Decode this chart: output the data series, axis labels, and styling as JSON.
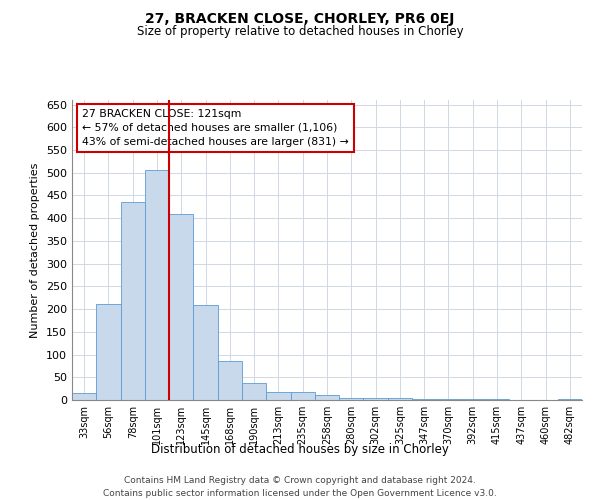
{
  "title": "27, BRACKEN CLOSE, CHORLEY, PR6 0EJ",
  "subtitle": "Size of property relative to detached houses in Chorley",
  "xlabel": "Distribution of detached houses by size in Chorley",
  "ylabel": "Number of detached properties",
  "bar_labels": [
    "33sqm",
    "56sqm",
    "78sqm",
    "101sqm",
    "123sqm",
    "145sqm",
    "168sqm",
    "190sqm",
    "213sqm",
    "235sqm",
    "258sqm",
    "280sqm",
    "302sqm",
    "325sqm",
    "347sqm",
    "370sqm",
    "392sqm",
    "415sqm",
    "437sqm",
    "460sqm",
    "482sqm"
  ],
  "bar_values": [
    15,
    212,
    435,
    505,
    410,
    208,
    85,
    38,
    18,
    18,
    10,
    5,
    5,
    5,
    3,
    3,
    3,
    3,
    0,
    0,
    3
  ],
  "bar_color": "#c9d9ec",
  "bar_edge_color": "#5b9bd5",
  "vline_color": "#cc0000",
  "vline_x_index": 3.5,
  "annotation_text": "27 BRACKEN CLOSE: 121sqm\n← 57% of detached houses are smaller (1,106)\n43% of semi-detached houses are larger (831) →",
  "annotation_box_color": "#ffffff",
  "annotation_box_edge": "#cc0000",
  "ylim": [
    0,
    660
  ],
  "yticks": [
    0,
    50,
    100,
    150,
    200,
    250,
    300,
    350,
    400,
    450,
    500,
    550,
    600,
    650
  ],
  "background_color": "#ffffff",
  "grid_color": "#d0d8e4",
  "footer_line1": "Contains HM Land Registry data © Crown copyright and database right 2024.",
  "footer_line2": "Contains public sector information licensed under the Open Government Licence v3.0."
}
